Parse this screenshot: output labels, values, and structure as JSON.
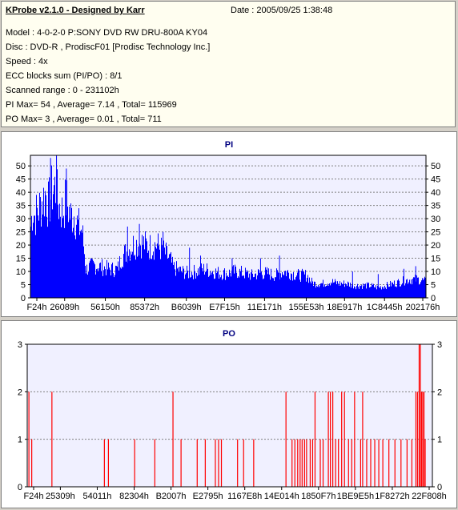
{
  "info": {
    "title": "KProbe v2.1.0 - Designed by Karr",
    "date": "Date : 2005/09/25 1:38:48",
    "lines": [
      "Model : 4-0-2-0 P:SONY    DVD RW DRU-800A  KY04",
      "Disc : DVD-R , ProdiscF01 [Prodisc Technology Inc.]",
      "Speed : 4x",
      "ECC blocks sum (PI/PO) : 8/1",
      "Scanned range : 0 - 231102h",
      "PI Max= 54 , Average= 7.14 , Total= 115969",
      "PO Max= 3 , Average= 0.01 , Total= 711"
    ]
  },
  "colors": {
    "pi": "#0000ff",
    "po": "#ff0000",
    "plot_bg": "#f0f0ff",
    "title": "#000080"
  },
  "chart_data": [
    {
      "type": "bar",
      "title": "PI",
      "ylim": [
        0,
        54
      ],
      "yticks": [
        0,
        5,
        10,
        15,
        20,
        25,
        30,
        35,
        40,
        45,
        50
      ],
      "xticks": [
        "F24h",
        "26089h",
        "56150h",
        "85372h",
        "B6039h",
        "E7F15h",
        "11E171h",
        "155E53h",
        "18E917h",
        "1C8445h",
        "202176h"
      ],
      "xtick_pos": [
        0,
        0.08,
        0.197,
        0.31,
        0.43,
        0.54,
        0.655,
        0.775,
        0.885,
        1.0,
        1.11
      ],
      "grid": true,
      "envelope": [
        [
          0,
          35
        ],
        [
          0.5,
          44
        ],
        [
          1,
          40
        ],
        [
          2,
          43
        ],
        [
          3,
          48
        ],
        [
          3.8,
          51
        ],
        [
          4.5,
          45
        ],
        [
          5.5,
          53
        ],
        [
          6.2,
          54
        ],
        [
          7,
          46
        ],
        [
          8,
          42
        ],
        [
          9,
          48
        ],
        [
          10,
          40
        ],
        [
          11,
          41
        ],
        [
          12,
          35
        ],
        [
          13,
          33
        ],
        [
          13.6,
          22
        ],
        [
          14,
          14
        ],
        [
          16,
          16
        ],
        [
          18,
          15
        ],
        [
          20,
          14
        ],
        [
          22,
          14
        ],
        [
          23,
          20
        ],
        [
          24,
          22
        ],
        [
          26,
          26
        ],
        [
          28,
          27
        ],
        [
          30,
          25
        ],
        [
          32,
          26
        ],
        [
          34,
          22
        ],
        [
          35.5,
          18
        ],
        [
          36,
          15
        ],
        [
          38,
          13
        ],
        [
          40,
          12
        ],
        [
          42,
          13
        ],
        [
          44,
          14
        ],
        [
          46,
          13
        ],
        [
          48,
          12
        ],
        [
          50,
          12
        ],
        [
          52,
          13
        ],
        [
          54,
          12
        ],
        [
          56,
          11
        ],
        [
          58,
          12
        ],
        [
          60,
          12
        ],
        [
          62,
          11
        ],
        [
          64,
          13
        ],
        [
          66,
          12
        ],
        [
          68,
          11
        ],
        [
          70,
          11
        ],
        [
          71,
          8
        ],
        [
          72,
          7
        ],
        [
          74,
          7
        ],
        [
          76,
          8
        ],
        [
          78,
          7
        ],
        [
          80,
          7
        ],
        [
          82,
          6
        ],
        [
          84,
          6
        ],
        [
          86,
          6
        ],
        [
          88,
          5
        ],
        [
          90,
          6
        ],
        [
          92,
          7
        ],
        [
          94,
          8
        ],
        [
          96,
          9
        ],
        [
          98,
          9
        ],
        [
          100,
          8
        ]
      ],
      "spikes": [
        [
          5,
          53
        ],
        [
          6.5,
          54
        ],
        [
          9,
          49
        ],
        [
          24.5,
          27
        ],
        [
          27.5,
          28
        ],
        [
          33.5,
          25
        ],
        [
          40.2,
          19
        ],
        [
          43,
          16
        ],
        [
          51,
          15
        ],
        [
          58.2,
          15
        ],
        [
          63,
          16
        ],
        [
          81.5,
          10
        ],
        [
          88,
          9
        ],
        [
          94.5,
          11
        ],
        [
          97.5,
          12
        ]
      ]
    },
    {
      "type": "bar",
      "title": "PO",
      "ylim": [
        0,
        3
      ],
      "yticks": [
        0,
        1,
        2,
        3
      ],
      "xticks": [
        "F24h",
        "25309h",
        "54011h",
        "82304h",
        "B2007h",
        "E2795h",
        "1167E8h",
        "14E014h",
        "1850F7h",
        "1BE9E5h",
        "1F8272h",
        "22F808h"
      ],
      "xtick_pos": [
        0,
        0.079,
        0.188,
        0.297,
        0.406,
        0.515,
        0.624,
        0.733,
        0.842,
        0.951,
        1.06,
        1.169
      ],
      "grid": true,
      "bars": [
        [
          0.3,
          2
        ],
        [
          1,
          1
        ],
        [
          6,
          2
        ],
        [
          19,
          1
        ],
        [
          20,
          1
        ],
        [
          26.5,
          1
        ],
        [
          31.5,
          1
        ],
        [
          36,
          2
        ],
        [
          38,
          1
        ],
        [
          42,
          1
        ],
        [
          44,
          1
        ],
        [
          46.5,
          1
        ],
        [
          47.3,
          1
        ],
        [
          48,
          1
        ],
        [
          52,
          1
        ],
        [
          53.5,
          1
        ],
        [
          56,
          1
        ],
        [
          64,
          2
        ],
        [
          65.5,
          1
        ],
        [
          66.2,
          1
        ],
        [
          66.9,
          1
        ],
        [
          67.5,
          1
        ],
        [
          68,
          1
        ],
        [
          68.6,
          1
        ],
        [
          69.1,
          1
        ],
        [
          70,
          1
        ],
        [
          70.6,
          1
        ],
        [
          71.2,
          2
        ],
        [
          72.5,
          1
        ],
        [
          73.2,
          1
        ],
        [
          74.5,
          2
        ],
        [
          75,
          2
        ],
        [
          75.6,
          2
        ],
        [
          76.3,
          1
        ],
        [
          77,
          1
        ],
        [
          77.8,
          2
        ],
        [
          78.5,
          2
        ],
        [
          79.5,
          1
        ],
        [
          80.3,
          1
        ],
        [
          81,
          2
        ],
        [
          82.5,
          1
        ],
        [
          83,
          2
        ],
        [
          84,
          1
        ],
        [
          85,
          1
        ],
        [
          86,
          1
        ],
        [
          87,
          1
        ],
        [
          88,
          1
        ],
        [
          89.5,
          1
        ],
        [
          91,
          1
        ],
        [
          92.5,
          1
        ],
        [
          94,
          1
        ],
        [
          95.2,
          1
        ],
        [
          96.2,
          2
        ],
        [
          96.6,
          2
        ],
        [
          97,
          3
        ],
        [
          97.3,
          3
        ],
        [
          97.6,
          2
        ],
        [
          97.9,
          2
        ],
        [
          98.2,
          2
        ],
        [
          98.5,
          1
        ]
      ]
    }
  ]
}
